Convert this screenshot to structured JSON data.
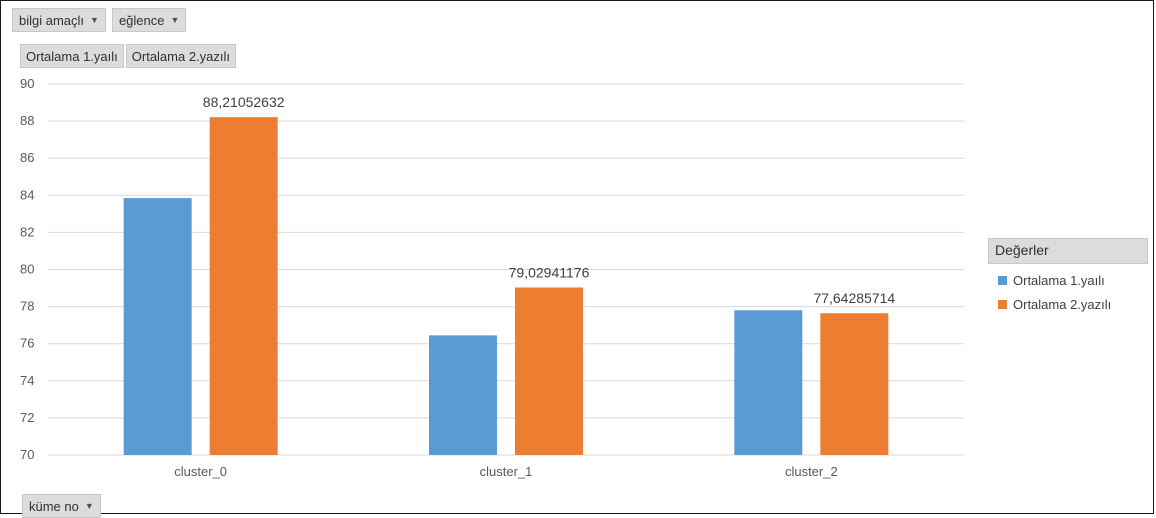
{
  "filters": {
    "page": [
      {
        "label": "bilgi amaçlı"
      },
      {
        "label": "eğlence"
      }
    ],
    "values": [
      {
        "label": "Ortalama 1.yaılı"
      },
      {
        "label": "Ortalama 2.yazılı"
      }
    ],
    "axis": {
      "label": "küme no"
    }
  },
  "legend": {
    "title": "Değerler",
    "items": [
      {
        "label": "Ortalama 1.yaılı",
        "color": "#5b9bd5"
      },
      {
        "label": "Ortalama 2.yazılı",
        "color": "#ed7d31"
      }
    ]
  },
  "chart_data": {
    "type": "bar",
    "categories": [
      "cluster_0",
      "cluster_1",
      "cluster_2"
    ],
    "series": [
      {
        "name": "Ortalama 1.yaılı",
        "color": "#5b9bd5",
        "values": [
          83.85,
          76.45,
          77.8
        ],
        "labels": [
          null,
          null,
          null
        ]
      },
      {
        "name": "Ortalama 2.yazılı",
        "color": "#ed7d31",
        "values": [
          88.21052632,
          79.02941176,
          77.64285714
        ],
        "labels": [
          "88,21052632",
          "79,02941176",
          "77,64285714"
        ]
      }
    ],
    "ylim": [
      70,
      90
    ],
    "yticks": [
      70,
      72,
      74,
      76,
      78,
      80,
      82,
      84,
      86,
      88,
      90
    ],
    "grid": true,
    "legend_position": "right"
  }
}
